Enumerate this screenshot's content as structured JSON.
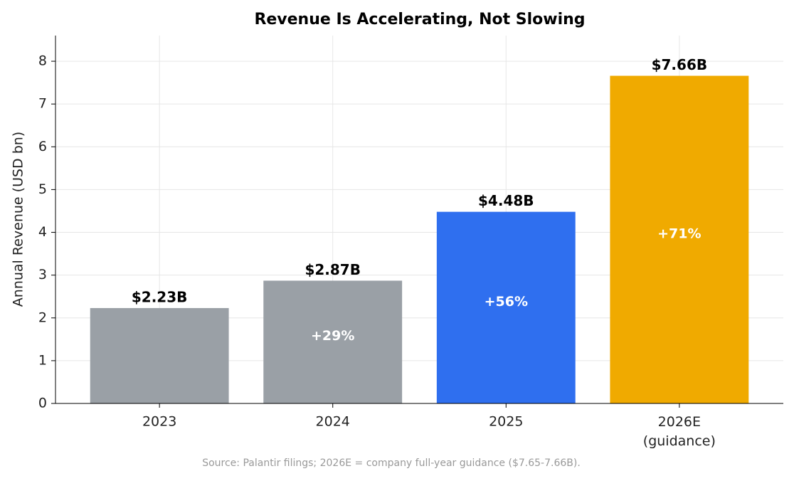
{
  "chart_data": {
    "type": "bar",
    "title": "Revenue Is Accelerating, Not Slowing",
    "y_label": "Annual Revenue (USD bn)",
    "categories": [
      "2023",
      "2024",
      "2025",
      "2026E\n(guidance)"
    ],
    "values": [
      2.23,
      2.87,
      4.48,
      7.66
    ],
    "value_labels": [
      "$2.23B",
      "$2.87B",
      "$4.48B",
      "$7.66B"
    ],
    "growth_labels": [
      null,
      "+29%",
      "+56%",
      "+71%"
    ],
    "colors": [
      "#9aa0a6",
      "#9aa0a6",
      "#2f6fef",
      "#f0aa00"
    ],
    "ylim": [
      0,
      8.6
    ],
    "yticks": [
      0,
      1,
      2,
      3,
      4,
      5,
      6,
      7,
      8
    ],
    "grid": true,
    "source": "Source: Palantir filings; 2026E = company full-year guidance ($7.65-7.66B)."
  }
}
